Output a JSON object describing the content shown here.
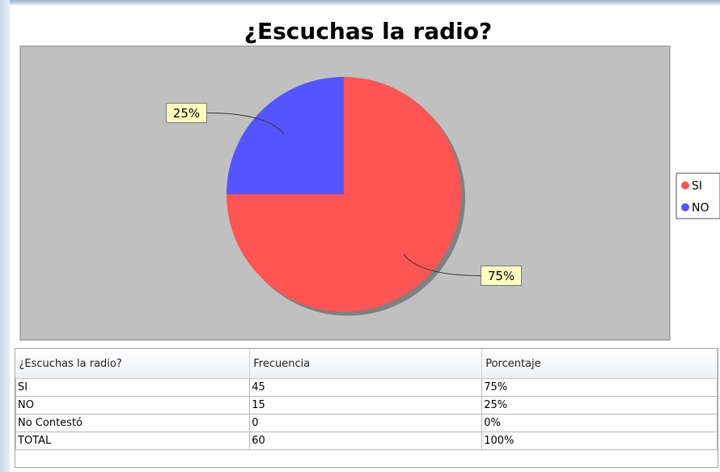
{
  "chart_data": {
    "type": "pie",
    "title": "¿Escuchas la radio?",
    "categories": [
      "SI",
      "NO"
    ],
    "values": [
      75,
      25
    ],
    "value_labels": [
      "75%",
      "25%"
    ],
    "colors": [
      "#ff5555",
      "#5555ff"
    ],
    "legend": "right"
  },
  "table": {
    "headers": [
      "¿Escuchas la radio?",
      "Frecuencia",
      "Porcentaje"
    ],
    "rows": [
      [
        "SI",
        "45",
        "75%"
      ],
      [
        "NO",
        "15",
        "25%"
      ],
      [
        "No Contestó",
        "0",
        "0%"
      ],
      [
        "TOTAL",
        "60",
        "100%"
      ]
    ]
  }
}
